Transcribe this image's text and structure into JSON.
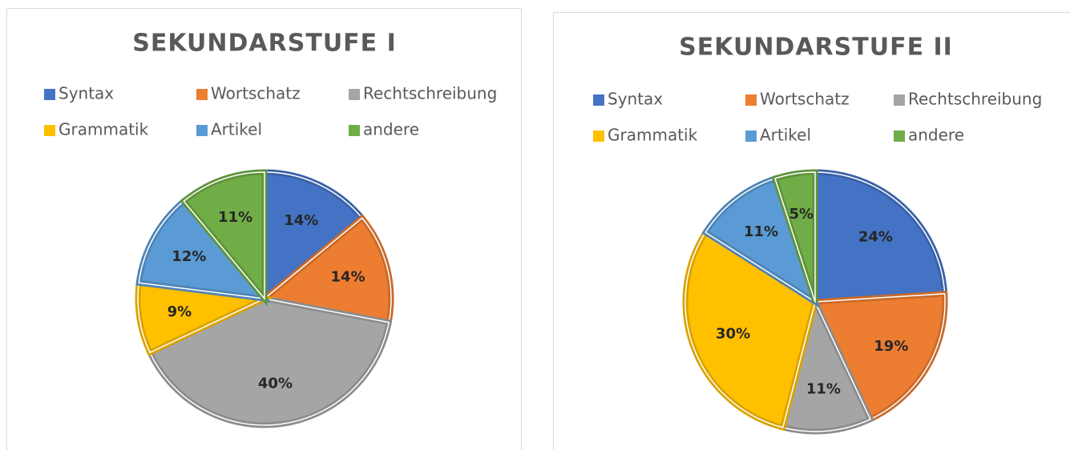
{
  "chart_data": [
    {
      "type": "pie",
      "title": "SEKUNDARSTUFE I",
      "categories": [
        "Syntax",
        "Wortschatz",
        "Rechtschreibung",
        "Grammatik",
        "Artikel",
        "andere"
      ],
      "values": [
        14,
        14,
        40,
        9,
        12,
        11
      ],
      "value_labels": [
        "14%",
        "14%",
        "40%",
        "9%",
        "12%",
        "11%"
      ],
      "colors": [
        "#4472c4",
        "#ed7d31",
        "#a5a5a5",
        "#ffc000",
        "#5b9bd5",
        "#70ad47"
      ],
      "legend": "top"
    },
    {
      "type": "pie",
      "title": "SEKUNDARSTUFE II",
      "categories": [
        "Syntax",
        "Wortschatz",
        "Rechtschreibung",
        "Grammatik",
        "Artikel",
        "andere"
      ],
      "values": [
        24,
        19,
        11,
        30,
        11,
        5
      ],
      "value_labels": [
        "24%",
        "19%",
        "11%",
        "30%",
        "11%",
        "5%"
      ],
      "colors": [
        "#4472c4",
        "#ed7d31",
        "#a5a5a5",
        "#ffc000",
        "#5b9bd5",
        "#70ad47"
      ],
      "legend": "top"
    }
  ]
}
